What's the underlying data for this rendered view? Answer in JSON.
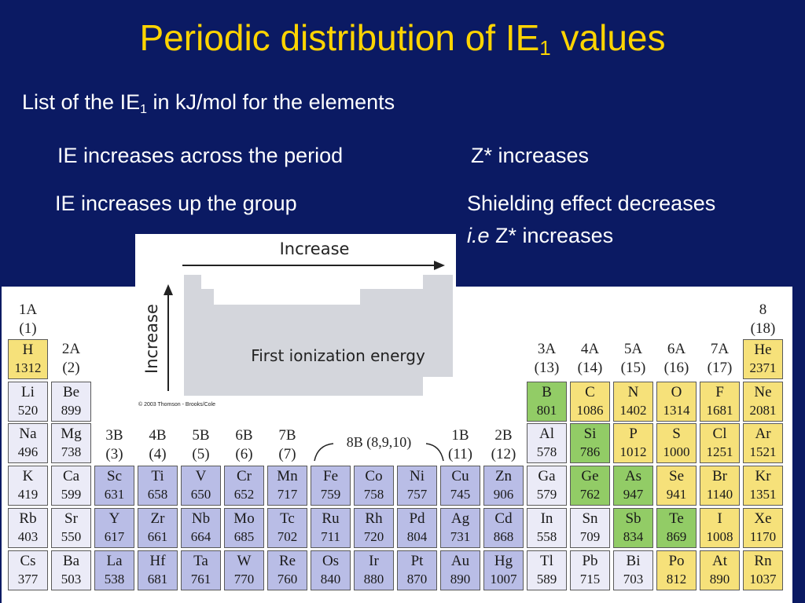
{
  "slide": {
    "title": "Periodic distribution of IE",
    "title_sub": "1",
    "title_after": " values",
    "list_before": "List of the IE",
    "list_sub": "1",
    "list_after": " in kJ/mol for the elements",
    "across": "IE increases across the period",
    "zstar": "Z* increases",
    "up": "IE increases up the group",
    "shield": "Shielding effect decreases",
    "ie_italic": "i.e",
    "ie_rest": " Z* increases"
  },
  "trend_figure": {
    "horizontal_label": "Increase",
    "vertical_label": "Increase",
    "shape_label": "First ionization energy",
    "copyright": "© 2003 Thomson - Brooks/Cole"
  },
  "colors": {
    "background": "#0b1a63",
    "title": "#ffd400",
    "yellow": "#f6e17a",
    "green": "#92cc66",
    "light": "#ebebf7",
    "blue": "#b9bde6"
  },
  "group_headers": [
    {
      "label": "1A",
      "num": "(1)"
    },
    {
      "label": "2A",
      "num": "(2)"
    },
    {
      "label": "3B",
      "num": "(3)"
    },
    {
      "label": "4B",
      "num": "(4)"
    },
    {
      "label": "5B",
      "num": "(5)"
    },
    {
      "label": "6B",
      "num": "(6)"
    },
    {
      "label": "7B",
      "num": "(7)"
    },
    {
      "label": "1B",
      "num": "(11)"
    },
    {
      "label": "2B",
      "num": "(12)"
    },
    {
      "label": "3A",
      "num": "(13)"
    },
    {
      "label": "4A",
      "num": "(14)"
    },
    {
      "label": "5A",
      "num": "(15)"
    },
    {
      "label": "6A",
      "num": "(16)"
    },
    {
      "label": "7A",
      "num": "(17)"
    },
    {
      "label": "8",
      "num": "(18)"
    }
  ],
  "group_8b_label": "8B (8,9,10)",
  "elements": [
    {
      "symbol": "H",
      "ie": "1312",
      "row": 0,
      "col": 0,
      "color": "y"
    },
    {
      "symbol": "He",
      "ie": "2371",
      "row": 0,
      "col": 17,
      "color": "y"
    },
    {
      "symbol": "Li",
      "ie": "520",
      "row": 1,
      "col": 0,
      "color": "l"
    },
    {
      "symbol": "Be",
      "ie": "899",
      "row": 1,
      "col": 1,
      "color": "l"
    },
    {
      "symbol": "B",
      "ie": "801",
      "row": 1,
      "col": 12,
      "color": "g"
    },
    {
      "symbol": "C",
      "ie": "1086",
      "row": 1,
      "col": 13,
      "color": "y"
    },
    {
      "symbol": "N",
      "ie": "1402",
      "row": 1,
      "col": 14,
      "color": "y"
    },
    {
      "symbol": "O",
      "ie": "1314",
      "row": 1,
      "col": 15,
      "color": "y"
    },
    {
      "symbol": "F",
      "ie": "1681",
      "row": 1,
      "col": 16,
      "color": "y"
    },
    {
      "symbol": "Ne",
      "ie": "2081",
      "row": 1,
      "col": 17,
      "color": "y"
    },
    {
      "symbol": "Na",
      "ie": "496",
      "row": 2,
      "col": 0,
      "color": "l"
    },
    {
      "symbol": "Mg",
      "ie": "738",
      "row": 2,
      "col": 1,
      "color": "l"
    },
    {
      "symbol": "Al",
      "ie": "578",
      "row": 2,
      "col": 12,
      "color": "l"
    },
    {
      "symbol": "Si",
      "ie": "786",
      "row": 2,
      "col": 13,
      "color": "g"
    },
    {
      "symbol": "P",
      "ie": "1012",
      "row": 2,
      "col": 14,
      "color": "y"
    },
    {
      "symbol": "S",
      "ie": "1000",
      "row": 2,
      "col": 15,
      "color": "y"
    },
    {
      "symbol": "Cl",
      "ie": "1251",
      "row": 2,
      "col": 16,
      "color": "y"
    },
    {
      "symbol": "Ar",
      "ie": "1521",
      "row": 2,
      "col": 17,
      "color": "y"
    },
    {
      "symbol": "K",
      "ie": "419",
      "row": 3,
      "col": 0,
      "color": "l"
    },
    {
      "symbol": "Ca",
      "ie": "599",
      "row": 3,
      "col": 1,
      "color": "l"
    },
    {
      "symbol": "Sc",
      "ie": "631",
      "row": 3,
      "col": 2,
      "color": "b"
    },
    {
      "symbol": "Ti",
      "ie": "658",
      "row": 3,
      "col": 3,
      "color": "b"
    },
    {
      "symbol": "V",
      "ie": "650",
      "row": 3,
      "col": 4,
      "color": "b"
    },
    {
      "symbol": "Cr",
      "ie": "652",
      "row": 3,
      "col": 5,
      "color": "b"
    },
    {
      "symbol": "Mn",
      "ie": "717",
      "row": 3,
      "col": 6,
      "color": "b"
    },
    {
      "symbol": "Fe",
      "ie": "759",
      "row": 3,
      "col": 7,
      "color": "b"
    },
    {
      "symbol": "Co",
      "ie": "758",
      "row": 3,
      "col": 8,
      "color": "b"
    },
    {
      "symbol": "Ni",
      "ie": "757",
      "row": 3,
      "col": 9,
      "color": "b"
    },
    {
      "symbol": "Cu",
      "ie": "745",
      "row": 3,
      "col": 10,
      "color": "b"
    },
    {
      "symbol": "Zn",
      "ie": "906",
      "row": 3,
      "col": 11,
      "color": "b"
    },
    {
      "symbol": "Ga",
      "ie": "579",
      "row": 3,
      "col": 12,
      "color": "l"
    },
    {
      "symbol": "Ge",
      "ie": "762",
      "row": 3,
      "col": 13,
      "color": "g"
    },
    {
      "symbol": "As",
      "ie": "947",
      "row": 3,
      "col": 14,
      "color": "g"
    },
    {
      "symbol": "Se",
      "ie": "941",
      "row": 3,
      "col": 15,
      "color": "y"
    },
    {
      "symbol": "Br",
      "ie": "1140",
      "row": 3,
      "col": 16,
      "color": "y"
    },
    {
      "symbol": "Kr",
      "ie": "1351",
      "row": 3,
      "col": 17,
      "color": "y"
    },
    {
      "symbol": "Rb",
      "ie": "403",
      "row": 4,
      "col": 0,
      "color": "l"
    },
    {
      "symbol": "Sr",
      "ie": "550",
      "row": 4,
      "col": 1,
      "color": "l"
    },
    {
      "symbol": "Y",
      "ie": "617",
      "row": 4,
      "col": 2,
      "color": "b"
    },
    {
      "symbol": "Zr",
      "ie": "661",
      "row": 4,
      "col": 3,
      "color": "b"
    },
    {
      "symbol": "Nb",
      "ie": "664",
      "row": 4,
      "col": 4,
      "color": "b"
    },
    {
      "symbol": "Mo",
      "ie": "685",
      "row": 4,
      "col": 5,
      "color": "b"
    },
    {
      "symbol": "Tc",
      "ie": "702",
      "row": 4,
      "col": 6,
      "color": "b"
    },
    {
      "symbol": "Ru",
      "ie": "711",
      "row": 4,
      "col": 7,
      "color": "b"
    },
    {
      "symbol": "Rh",
      "ie": "720",
      "row": 4,
      "col": 8,
      "color": "b"
    },
    {
      "symbol": "Pd",
      "ie": "804",
      "row": 4,
      "col": 9,
      "color": "b"
    },
    {
      "symbol": "Ag",
      "ie": "731",
      "row": 4,
      "col": 10,
      "color": "b"
    },
    {
      "symbol": "Cd",
      "ie": "868",
      "row": 4,
      "col": 11,
      "color": "b"
    },
    {
      "symbol": "In",
      "ie": "558",
      "row": 4,
      "col": 12,
      "color": "l"
    },
    {
      "symbol": "Sn",
      "ie": "709",
      "row": 4,
      "col": 13,
      "color": "l"
    },
    {
      "symbol": "Sb",
      "ie": "834",
      "row": 4,
      "col": 14,
      "color": "g"
    },
    {
      "symbol": "Te",
      "ie": "869",
      "row": 4,
      "col": 15,
      "color": "g"
    },
    {
      "symbol": "I",
      "ie": "1008",
      "row": 4,
      "col": 16,
      "color": "y"
    },
    {
      "symbol": "Xe",
      "ie": "1170",
      "row": 4,
      "col": 17,
      "color": "y"
    },
    {
      "symbol": "Cs",
      "ie": "377",
      "row": 5,
      "col": 0,
      "color": "l"
    },
    {
      "symbol": "Ba",
      "ie": "503",
      "row": 5,
      "col": 1,
      "color": "l"
    },
    {
      "symbol": "La",
      "ie": "538",
      "row": 5,
      "col": 2,
      "color": "b"
    },
    {
      "symbol": "Hf",
      "ie": "681",
      "row": 5,
      "col": 3,
      "color": "b"
    },
    {
      "symbol": "Ta",
      "ie": "761",
      "row": 5,
      "col": 4,
      "color": "b"
    },
    {
      "symbol": "W",
      "ie": "770",
      "row": 5,
      "col": 5,
      "color": "b"
    },
    {
      "symbol": "Re",
      "ie": "760",
      "row": 5,
      "col": 6,
      "color": "b"
    },
    {
      "symbol": "Os",
      "ie": "840",
      "row": 5,
      "col": 7,
      "color": "b"
    },
    {
      "symbol": "Ir",
      "ie": "880",
      "row": 5,
      "col": 8,
      "color": "b"
    },
    {
      "symbol": "Pt",
      "ie": "870",
      "row": 5,
      "col": 9,
      "color": "b"
    },
    {
      "symbol": "Au",
      "ie": "890",
      "row": 5,
      "col": 10,
      "color": "b"
    },
    {
      "symbol": "Hg",
      "ie": "1007",
      "row": 5,
      "col": 11,
      "color": "b"
    },
    {
      "symbol": "Tl",
      "ie": "589",
      "row": 5,
      "col": 12,
      "color": "l"
    },
    {
      "symbol": "Pb",
      "ie": "715",
      "row": 5,
      "col": 13,
      "color": "l"
    },
    {
      "symbol": "Bi",
      "ie": "703",
      "row": 5,
      "col": 14,
      "color": "l"
    },
    {
      "symbol": "Po",
      "ie": "812",
      "row": 5,
      "col": 15,
      "color": "y"
    },
    {
      "symbol": "At",
      "ie": "890",
      "row": 5,
      "col": 16,
      "color": "y"
    },
    {
      "symbol": "Rn",
      "ie": "1037",
      "row": 5,
      "col": 17,
      "color": "y"
    }
  ]
}
